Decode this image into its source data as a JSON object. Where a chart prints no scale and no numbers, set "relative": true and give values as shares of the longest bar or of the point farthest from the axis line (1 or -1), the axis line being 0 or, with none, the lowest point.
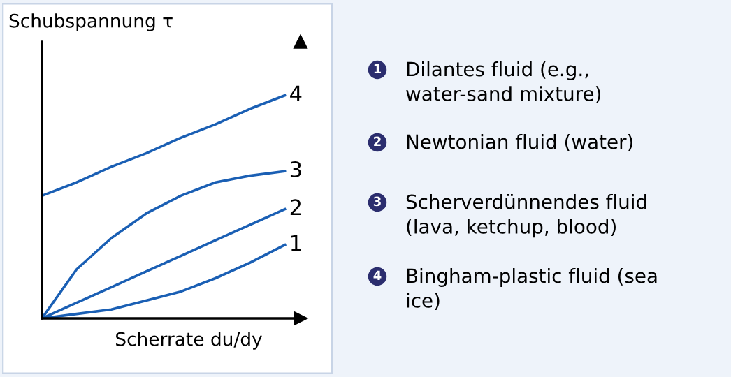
{
  "chart_data": {
    "type": "line",
    "relative": true,
    "xlabel": "Scherrate du/dy",
    "ylabel": "Schubspannung τ",
    "categories": [
      null,
      null,
      null,
      null,
      null,
      null,
      null,
      null
    ],
    "series": [
      {
        "name": "4",
        "color": "#1a5fb4",
        "values": [
          0.55,
          0.61,
          0.68,
          0.74,
          0.81,
          0.87,
          0.94,
          1.0
        ]
      },
      {
        "name": "3",
        "color": "#1a5fb4",
        "values": [
          0,
          0.22,
          0.36,
          0.47,
          0.55,
          0.61,
          0.64,
          0.66
        ]
      },
      {
        "name": "2",
        "color": "#1a5fb4",
        "values": [
          0,
          0.07,
          0.14,
          0.21,
          0.28,
          0.35,
          0.42,
          0.49
        ]
      },
      {
        "name": "1",
        "color": "#1a5fb4",
        "values": [
          0,
          0.02,
          0.04,
          0.08,
          0.12,
          0.18,
          0.25,
          0.33
        ]
      }
    ],
    "annotations": [
      "Dilantes fluid (e.g.,\nwater-sand mixture)",
      "Newtonian fluid (water)",
      "Scherverdünnendes fluid\n(lava, ketchup, blood)",
      "Bingham-plastic fluid (sea\nice)"
    ],
    "grid": false,
    "legend": false,
    "marker": "none",
    "line_style": "solid"
  }
}
